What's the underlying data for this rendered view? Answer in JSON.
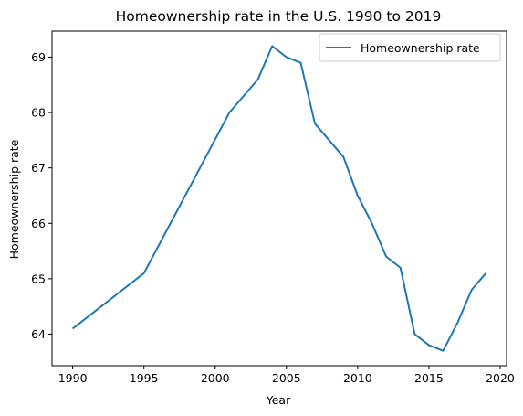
{
  "chart_data": {
    "type": "line",
    "title": "Homeownership rate in the U.S. 1990 to 2019",
    "xlabel": "Year",
    "ylabel": "Homeownership rate",
    "xlim": [
      1988.55,
      2020.45
    ],
    "ylim": [
      63.43,
      69.47
    ],
    "x_ticks": [
      1990,
      1995,
      2000,
      2005,
      2010,
      2015,
      2020
    ],
    "y_ticks": [
      64,
      65,
      66,
      67,
      68,
      69
    ],
    "grid": false,
    "legend_position": "top-right",
    "series": [
      {
        "name": "Homeownership rate",
        "color": "#1f77b4",
        "x": [
          1990,
          1995,
          2001,
          2003,
          2004,
          2005,
          2006,
          2007,
          2009,
          2010,
          2011,
          2012,
          2013,
          2014,
          2015,
          2016,
          2017,
          2018,
          2019
        ],
        "y": [
          64.1,
          65.1,
          68.0,
          68.6,
          69.2,
          69.0,
          68.9,
          67.8,
          67.2,
          66.5,
          66.0,
          65.4,
          65.2,
          64.0,
          63.8,
          63.7,
          64.2,
          64.8,
          65.1
        ]
      }
    ]
  }
}
